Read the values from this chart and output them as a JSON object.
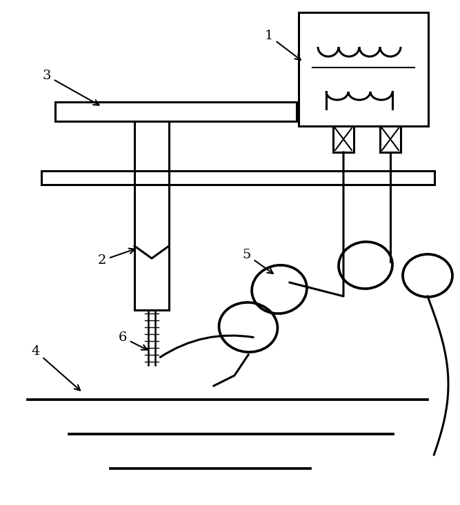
{
  "bg_color": "#ffffff",
  "line_color": "#000000",
  "fig_width": 6.67,
  "fig_height": 7.33,
  "dpi": 100
}
